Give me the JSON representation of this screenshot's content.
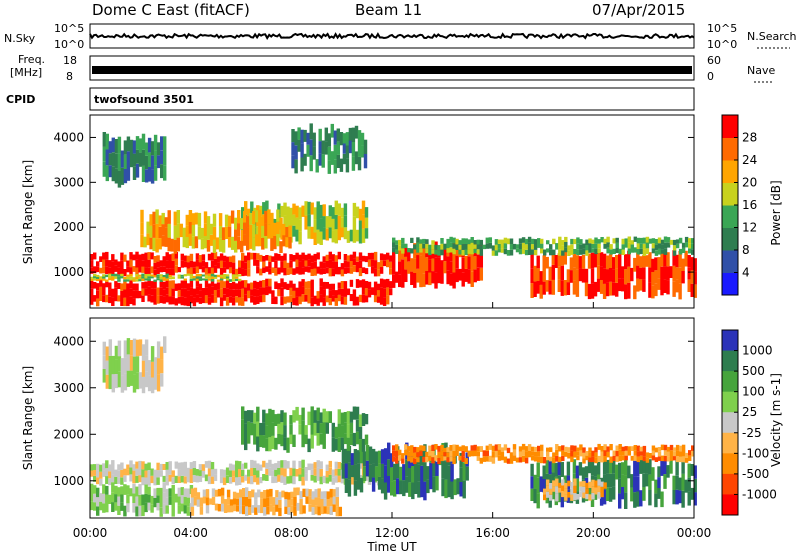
{
  "header": {
    "site": "Dome C East (fitACF)",
    "beam": "Beam 11",
    "date": "07/Apr/2015"
  },
  "strip": {
    "nsky_label": "N.Sky",
    "nsky_ticks": [
      "10^5",
      "10^0"
    ],
    "nsearch_label": "N.Search",
    "nsearch_ticks": [
      "10^5",
      "10^0"
    ],
    "freq_label_1": "Freq.",
    "freq_label_2": "[MHz]",
    "freq_ticks": [
      "18",
      "8"
    ],
    "nave_label": "Nave",
    "nave_ticks": [
      "60",
      "0"
    ],
    "cpid_label": "CPID",
    "cpid_value": "twofsound 3501"
  },
  "colors": {
    "power": [
      "#1a1aff",
      "#3050a8",
      "#2f7d50",
      "#3aa655",
      "#c8d21e",
      "#ffa500",
      "#ff6a00",
      "#ff0000"
    ],
    "velocity": [
      "#2b33b8",
      "#2e7d4f",
      "#46a43c",
      "#7fd04d",
      "#c8c8c8",
      "#ffb347",
      "#ff8c00",
      "#ff4500",
      "#ff0000"
    ]
  },
  "chart_data": [
    {
      "type": "heatmap",
      "title": "Power",
      "ylabel": "Slant Range [km]",
      "xlabel": "",
      "x_ticks": [
        "00:00",
        "04:00",
        "08:00",
        "12:00",
        "16:00",
        "20:00",
        "00:00"
      ],
      "xlim_hours": [
        0,
        24
      ],
      "y_ticks": [
        1000,
        2000,
        3000,
        4000
      ],
      "ylim": [
        200,
        4500
      ],
      "colorbar": {
        "label": "Power [dB]",
        "ticks": [
          4,
          8,
          12,
          16,
          20,
          24,
          28
        ],
        "range": [
          0,
          32
        ]
      },
      "regions": [
        {
          "t0": 0,
          "t1": 12,
          "r0": 300,
          "r1": 800,
          "level": 31
        },
        {
          "t0": 0,
          "t1": 12,
          "r0": 950,
          "r1": 1400,
          "level": 30
        },
        {
          "t0": 0,
          "t1": 6,
          "r0": 800,
          "r1": 950,
          "level": 18
        },
        {
          "t0": 12,
          "t1": 15.5,
          "r0": 700,
          "r1": 1600,
          "level": 29
        },
        {
          "t0": 17.5,
          "t1": 24,
          "r0": 500,
          "r1": 1400,
          "level": 29
        },
        {
          "t0": 12,
          "t1": 24,
          "r0": 1400,
          "r1": 1750,
          "level": 14
        },
        {
          "t0": 6,
          "t1": 11,
          "r0": 1700,
          "r1": 2500,
          "level": 18
        },
        {
          "t0": 2,
          "t1": 8,
          "r0": 1500,
          "r1": 2300,
          "level": 22
        },
        {
          "t0": 0.5,
          "t1": 3,
          "r0": 3000,
          "r1": 4000,
          "level": 10
        },
        {
          "t0": 8,
          "t1": 11,
          "r0": 3300,
          "r1": 4200,
          "level": 10
        }
      ]
    },
    {
      "type": "heatmap",
      "title": "Velocity",
      "ylabel": "Slant Range [km]",
      "xlabel": "Time UT",
      "x_ticks": [
        "00:00",
        "04:00",
        "08:00",
        "12:00",
        "16:00",
        "20:00",
        "00:00"
      ],
      "xlim_hours": [
        0,
        24
      ],
      "y_ticks": [
        1000,
        2000,
        3000,
        4000
      ],
      "ylim": [
        200,
        4500
      ],
      "colorbar": {
        "label": "Velocity [m s-1]",
        "ticks": [
          "1000",
          "500",
          "100",
          "25",
          "-25",
          "-100",
          "-500",
          "-1000"
        ]
      },
      "regions": [
        {
          "t0": 0,
          "t1": 12,
          "r0": 950,
          "r1": 1400,
          "cls": 4
        },
        {
          "t0": 0,
          "t1": 4,
          "r0": 300,
          "r1": 900,
          "cls": 3
        },
        {
          "t0": 4,
          "t1": 10,
          "r0": 300,
          "r1": 800,
          "cls": 5
        },
        {
          "t0": 10,
          "t1": 15,
          "r0": 700,
          "r1": 1700,
          "cls": 1
        },
        {
          "t0": 17.5,
          "t1": 24,
          "r0": 500,
          "r1": 1400,
          "cls": 1
        },
        {
          "t0": 18,
          "t1": 20.5,
          "r0": 600,
          "r1": 1000,
          "cls": 5
        },
        {
          "t0": 12,
          "t1": 24,
          "r0": 1400,
          "r1": 1750,
          "cls": 6
        },
        {
          "t0": 6,
          "t1": 11,
          "r0": 1700,
          "r1": 2500,
          "cls": 2
        },
        {
          "t0": 0.5,
          "t1": 3,
          "r0": 3000,
          "r1": 4000,
          "cls": 4
        }
      ]
    }
  ]
}
